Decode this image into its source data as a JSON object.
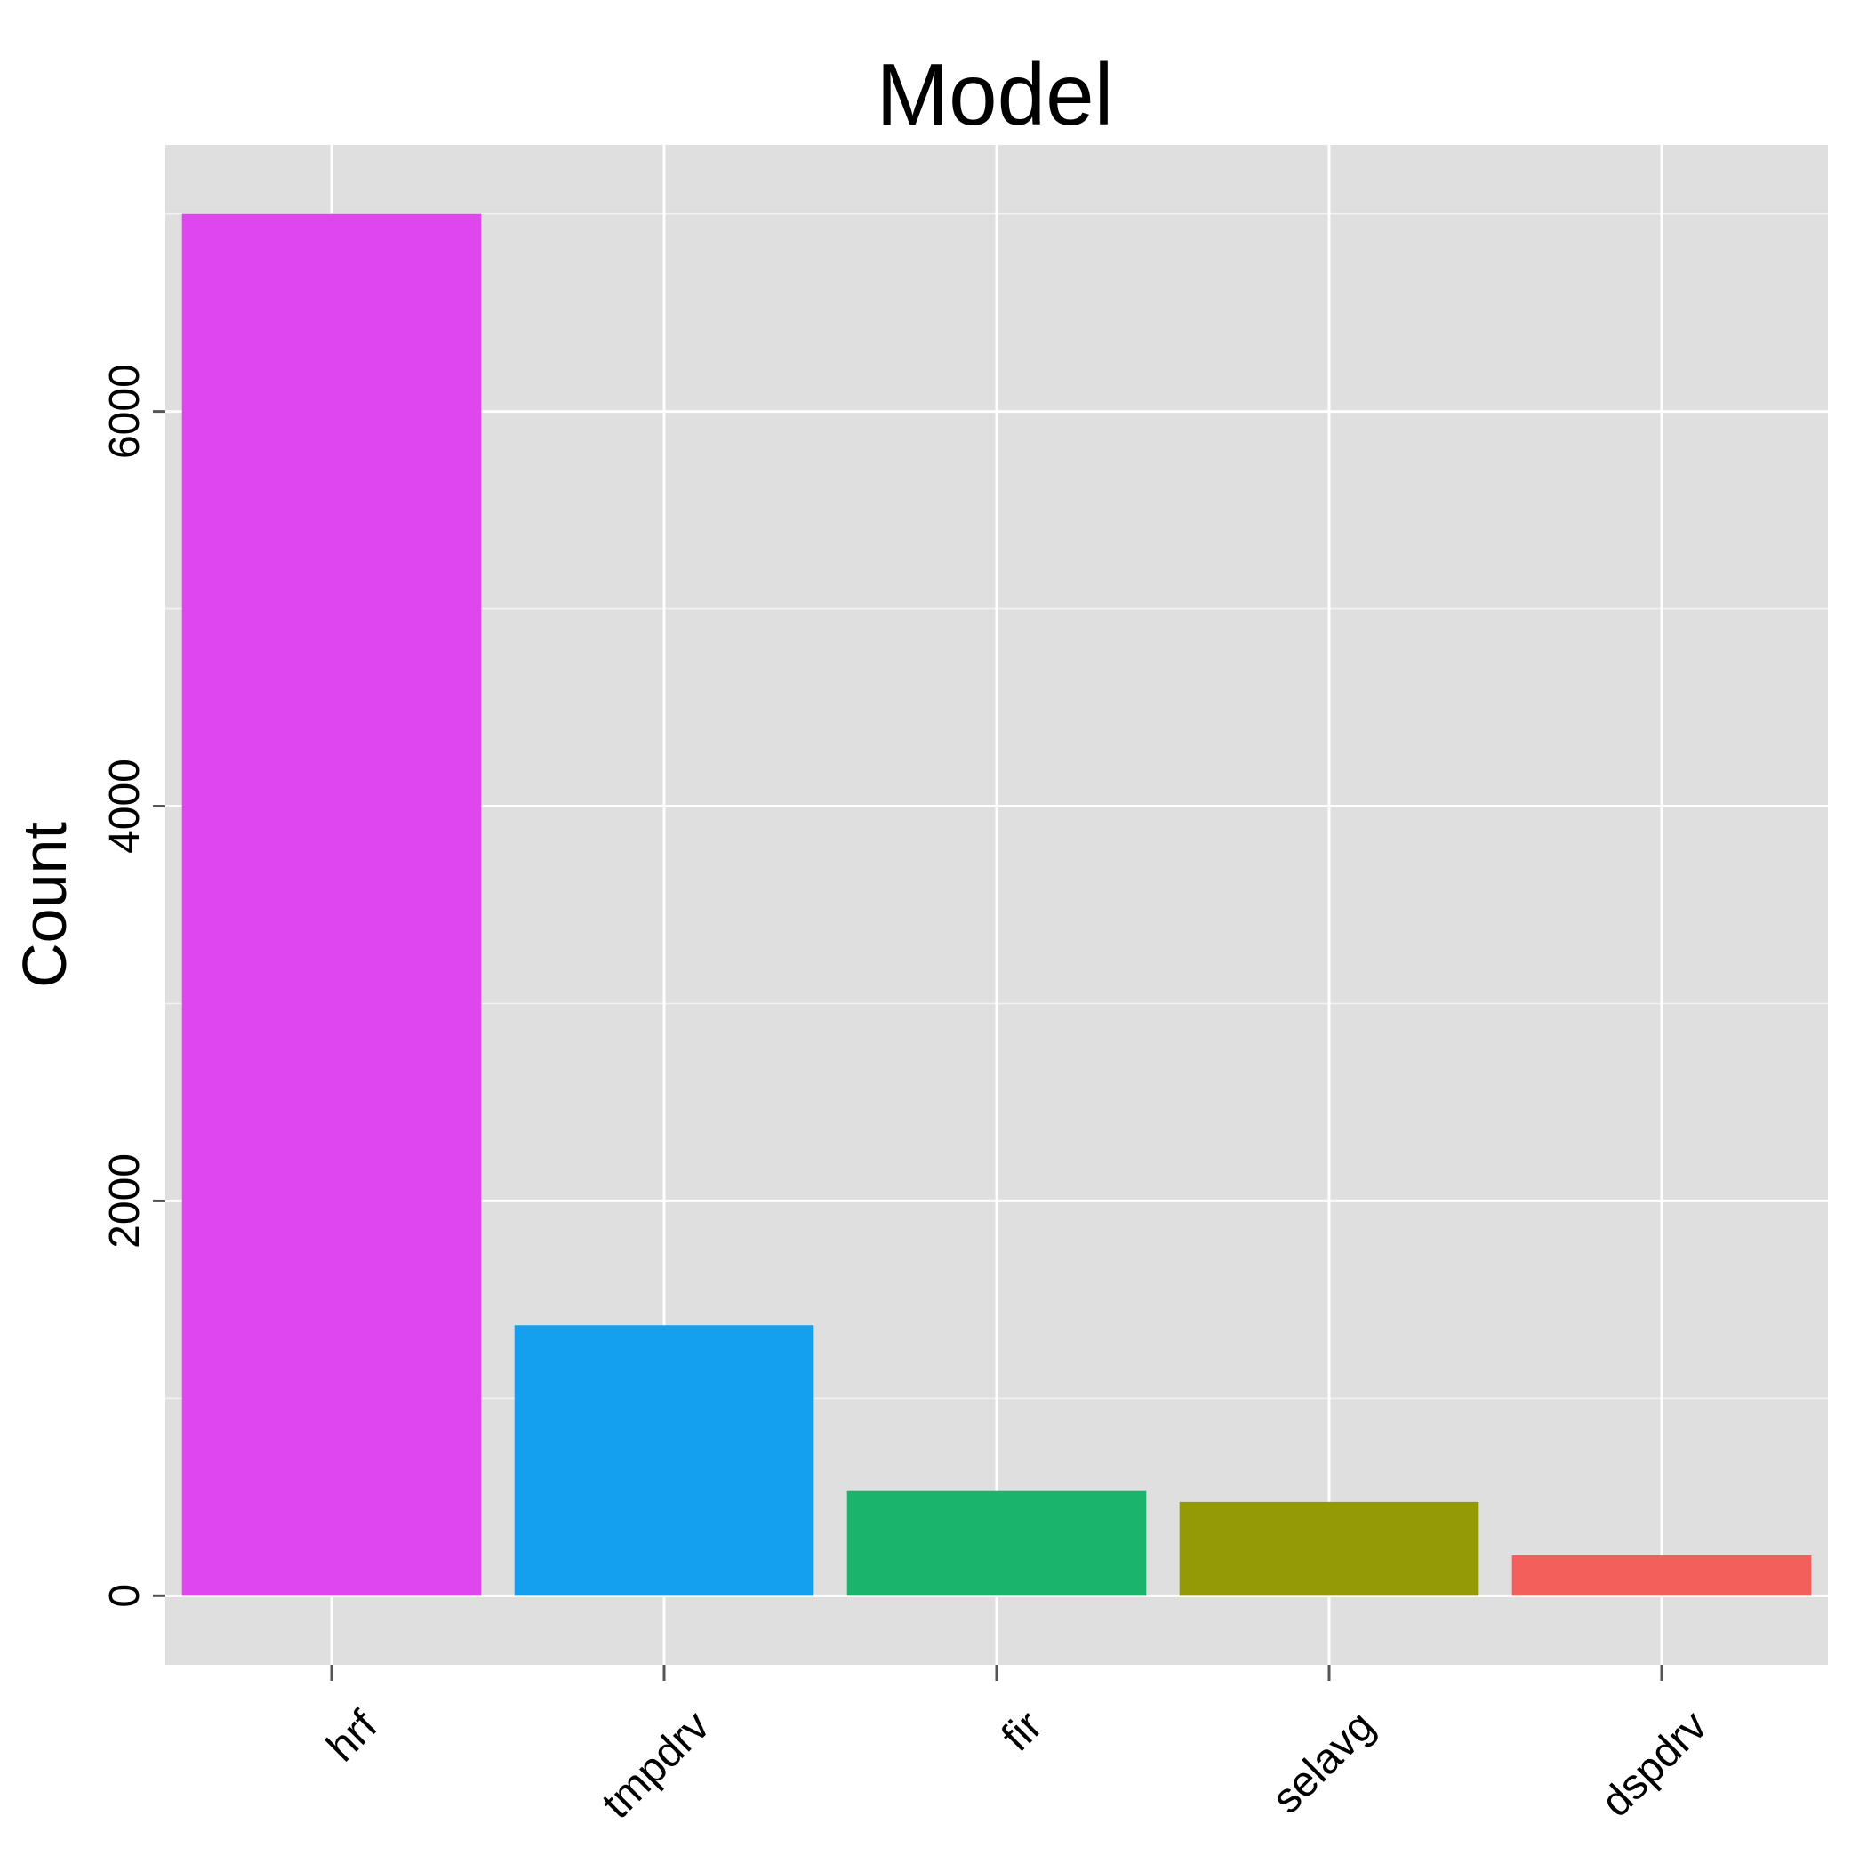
{
  "chart_data": {
    "type": "bar",
    "title": "Model",
    "xlabel": "",
    "ylabel": "Count",
    "categories": [
      "hrf",
      "tmpdrv",
      "fir",
      "selavg",
      "dspdrv"
    ],
    "values": [
      7000,
      1370,
      530,
      475,
      205
    ],
    "colors": [
      "#E046EE",
      "#159FEF",
      "#1BB46C",
      "#939A05",
      "#F35F5B"
    ],
    "ylim": [
      -350,
      7350
    ],
    "yticks": [
      0,
      2000,
      4000,
      6000
    ],
    "ytick_labels": [
      "0",
      "2000",
      "4000",
      "6000"
    ],
    "grid": true,
    "legend": "none",
    "panel_background": "#DFDFDF",
    "grid_color": "#FFFFFF"
  }
}
